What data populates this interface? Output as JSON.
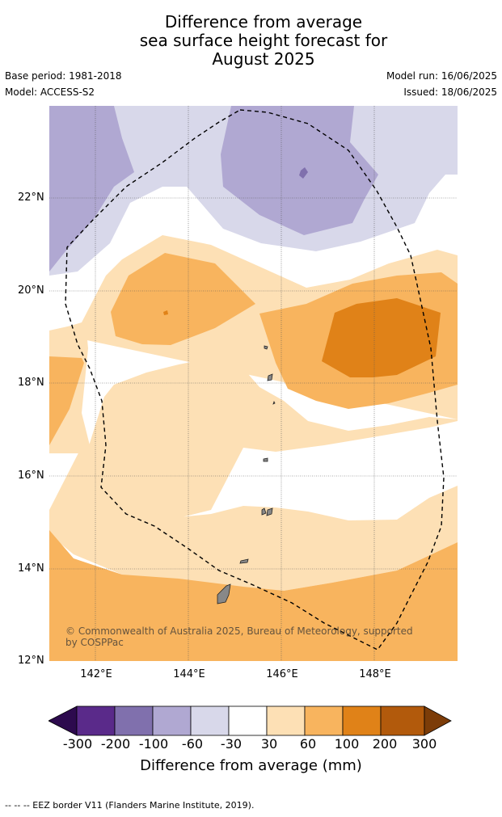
{
  "title": {
    "line1": "Difference from average",
    "line2": "sea surface height forecast for",
    "line3": "August 2025"
  },
  "meta": {
    "base_period": "Base period: 1981-2018",
    "model": "Model: ACCESS-S2",
    "model_run": "Model run: 16/06/2025",
    "issued": "Issued: 18/06/2025"
  },
  "map": {
    "lat_labels": [
      "22°N",
      "20°N",
      "18°N",
      "16°N",
      "14°N",
      "12°N"
    ],
    "lon_labels": [
      "142°E",
      "144°E",
      "146°E",
      "148°E"
    ],
    "lat_values": [
      22,
      20,
      18,
      16,
      14,
      12
    ],
    "lon_values": [
      142,
      144,
      146,
      148
    ],
    "lon_range": [
      141,
      149.8
    ],
    "lat_range": [
      12,
      24
    ],
    "gridlines": true,
    "copyright": "© Commonwealth of Australia 2025, Bureau of Meteorology, supported by COSPPac"
  },
  "colorbar": {
    "labels": [
      "-300",
      "-200",
      "-100",
      "-60",
      "-30",
      "30",
      "60",
      "100",
      "200",
      "300"
    ],
    "colors": [
      "#2d0a4e",
      "#5a2a8a",
      "#8070ad",
      "#b0a8d2",
      "#d8d8ea",
      "#ffffff",
      "#fde0b5",
      "#f8b45e",
      "#e08218",
      "#b25a0c",
      "#7c3c08"
    ],
    "title": "Difference from average (mm)"
  },
  "footer": "--  --  -- EEZ border V11 (Flanders Marine Institute, 2019)."
}
